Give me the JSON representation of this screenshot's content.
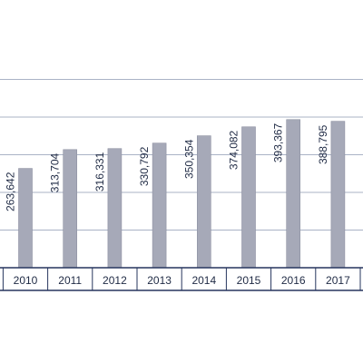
{
  "chart_data": {
    "type": "bar",
    "categories": [
      "2010",
      "2011",
      "2012",
      "2013",
      "2014",
      "2015",
      "2016",
      "2017"
    ],
    "values": [
      263642,
      313704,
      316331,
      330792,
      350354,
      374082,
      393367,
      388795
    ],
    "data_labels": [
      "263,642",
      "313,704",
      "316,331",
      "330,792",
      "350,354",
      "374,082",
      "393,367",
      "388,795"
    ],
    "title": "",
    "xlabel": "",
    "ylabel": "",
    "ylim": [
      0,
      500000
    ],
    "grid": true,
    "legend": "none",
    "colors": {
      "bar": "#a6a9b8",
      "bar_edge": "#8d90a0",
      "grid": "#aab3c6",
      "axis": "#26355e",
      "text": "#1f2a44"
    }
  }
}
